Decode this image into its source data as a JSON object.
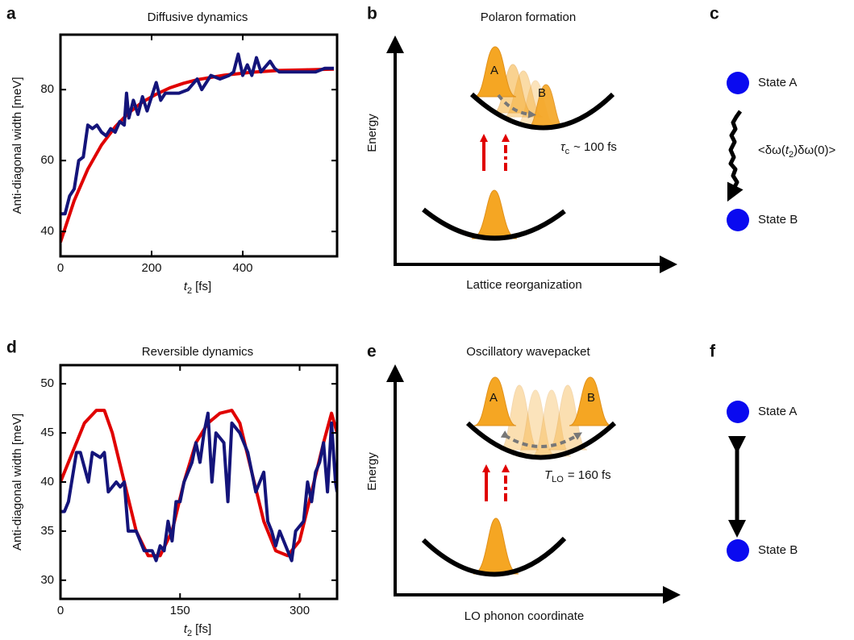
{
  "panel_labels": [
    "a",
    "b",
    "c",
    "d",
    "e",
    "f"
  ],
  "chart_data": [
    {
      "type": "line",
      "title": "Diffusive dynamics",
      "y_label": "Anti-diagonal width [meV]",
      "x_label": {
        "var": "t",
        "sub": "2",
        "unit": "[fs]"
      },
      "xlim": [
        0,
        607
      ],
      "xticks": [
        0,
        200,
        400
      ],
      "ylim": [
        33,
        95.5
      ],
      "yticks": [
        40,
        60,
        80
      ],
      "series": [
        {
          "color": "#e00000",
          "x": [
            0,
            30,
            60,
            90,
            120,
            150,
            180,
            210,
            240,
            270,
            300,
            360,
            420,
            480,
            540,
            600
          ],
          "values": [
            37,
            48.7,
            57.6,
            64.4,
            69.5,
            73.5,
            76.5,
            78.7,
            80.5,
            81.8,
            82.8,
            84.1,
            84.9,
            85.4,
            85.6,
            85.8
          ]
        },
        {
          "color": "#14147a",
          "x": [
            0,
            10,
            20,
            30,
            40,
            50,
            60,
            70,
            80,
            90,
            100,
            110,
            120,
            130,
            140,
            145,
            150,
            160,
            170,
            180,
            190,
            200,
            210,
            220,
            230,
            240,
            260,
            280,
            300,
            310,
            330,
            350,
            370,
            380,
            390,
            400,
            410,
            420,
            430,
            440,
            460,
            470,
            480,
            500,
            520,
            540,
            560,
            580,
            600
          ],
          "values": [
            45,
            45,
            50,
            52,
            60,
            61,
            70,
            69,
            70,
            68,
            67,
            69,
            68,
            71,
            70,
            79,
            72,
            77,
            73,
            78,
            74,
            78,
            82,
            77,
            79,
            79,
            79,
            80,
            83,
            80,
            84,
            83,
            84,
            85,
            90,
            84,
            87,
            84,
            89,
            85,
            88,
            86,
            85,
            85,
            85,
            85,
            85,
            86,
            86
          ]
        }
      ]
    },
    {
      "type": "line",
      "title": "Reversible dynamics",
      "y_label": "Anti-diagonal width [meV]",
      "x_label": {
        "var": "t",
        "sub": "2",
        "unit": "[fs]"
      },
      "xlim": [
        0,
        347
      ],
      "xticks": [
        0,
        150,
        300
      ],
      "ylim": [
        28.1,
        51.9
      ],
      "yticks": [
        30,
        35,
        40,
        45,
        50
      ],
      "series": [
        {
          "color": "#e00000",
          "x": [
            0,
            15,
            30,
            45,
            55,
            65,
            80,
            95,
            110,
            125,
            140,
            155,
            170,
            185,
            200,
            215,
            225,
            240,
            255,
            270,
            285,
            300,
            315,
            330,
            340,
            347
          ],
          "values": [
            40,
            43,
            46,
            47.3,
            47.3,
            45,
            40,
            35,
            32.5,
            32.5,
            35,
            40,
            44,
            46,
            47,
            47.3,
            46,
            41,
            36,
            33,
            32.5,
            34,
            39,
            44,
            47,
            45
          ]
        },
        {
          "color": "#14147a",
          "x": [
            0,
            5,
            10,
            20,
            25,
            35,
            40,
            50,
            55,
            60,
            70,
            75,
            80,
            85,
            95,
            105,
            115,
            120,
            125,
            130,
            135,
            140,
            145,
            150,
            155,
            165,
            170,
            175,
            180,
            185,
            190,
            195,
            205,
            210,
            215,
            225,
            235,
            245,
            255,
            260,
            265,
            270,
            275,
            285,
            290,
            295,
            305,
            310,
            315,
            320,
            325,
            330,
            335,
            340,
            345,
            347
          ],
          "values": [
            37,
            37,
            38,
            43,
            43,
            40,
            43,
            42.5,
            43,
            39,
            40,
            39.5,
            40,
            35,
            35,
            33,
            33,
            32,
            33.5,
            33,
            36,
            34,
            38,
            38,
            40,
            42,
            44,
            42,
            45,
            47,
            40,
            45,
            44,
            38,
            46,
            45,
            43,
            39,
            41,
            36,
            35,
            33.5,
            35,
            33,
            32,
            35,
            36,
            40,
            38,
            41,
            42,
            44,
            39,
            46,
            40,
            39
          ]
        }
      ]
    }
  ],
  "diagrams": [
    {
      "title": "Polaron formation",
      "y_label": "Energy",
      "x_label": "Lattice reorganization",
      "label_a": "A",
      "label_b": "B",
      "time": {
        "var": "τ",
        "sub": "c",
        "text": "~ 100 fs"
      }
    },
    {
      "states": [
        "State A",
        "State B"
      ],
      "correlation": {
        "pre": "<δω(",
        "var": "t",
        "sub": "2",
        "post": ")δω(0)>"
      }
    },
    {
      "title": "Oscillatory wavepacket",
      "y_label": "Energy",
      "x_label": "LO phonon coordinate",
      "label_a": "A",
      "label_b": "B",
      "time": {
        "var": "T",
        "sub": "LO",
        "text": "= 160 fs"
      }
    },
    {
      "states": [
        "State A",
        "State B"
      ]
    }
  ]
}
